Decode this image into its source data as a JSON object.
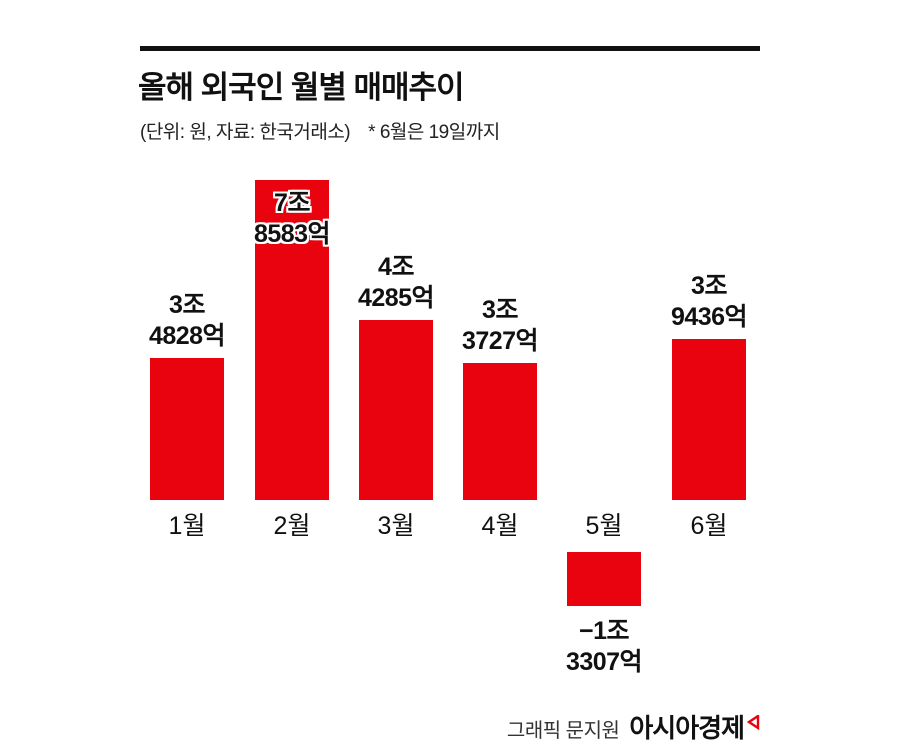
{
  "header": {
    "title": "올해 외국인 월별 매매추이",
    "subtitle": "(단위: 원, 자료: 한국거래소)",
    "note": "* 6월은 19일까지"
  },
  "chart_data": {
    "type": "bar",
    "title": "올해 외국인 월별 매매추이",
    "unit": "원 (조 단위)",
    "source": "한국거래소",
    "categories": [
      "1월",
      "2월",
      "3월",
      "4월",
      "5월",
      "6월"
    ],
    "values": [
      3.4828,
      7.8583,
      4.4285,
      3.3727,
      -1.3307,
      3.9436
    ],
    "labels": [
      [
        "3조",
        "4828억"
      ],
      [
        "7조",
        "8583억"
      ],
      [
        "4조",
        "4285억"
      ],
      [
        "3조",
        "3727억"
      ],
      [
        "−1조",
        "3307억"
      ],
      [
        "3조",
        "9436억"
      ]
    ],
    "bar_color": "#e8030f",
    "ylim": [
      -2,
      8
    ],
    "grid": false,
    "legend": false
  },
  "footer": {
    "credit": "그래픽 문지원",
    "brand": "아시아경제"
  }
}
